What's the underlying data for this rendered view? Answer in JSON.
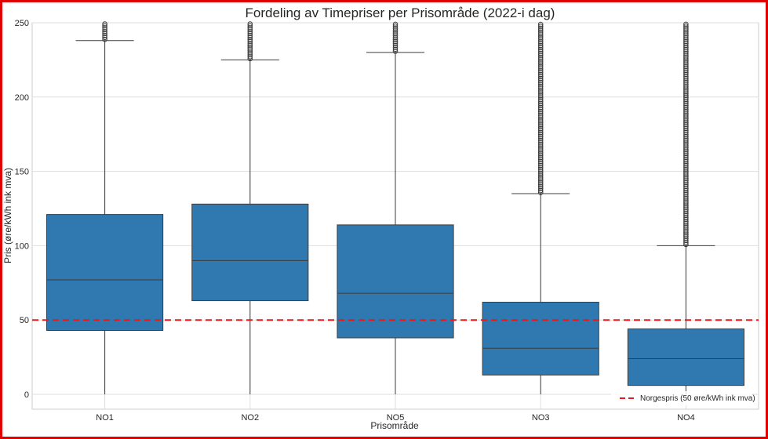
{
  "chart_data": {
    "type": "box",
    "title": "Fordeling av Timepriser per Prisområde (2022-i dag)",
    "xlabel": "Prisområde",
    "ylabel": "Pris (øre/kWh ink mva)",
    "ylim": [
      -10,
      250
    ],
    "yticks": [
      0,
      50,
      100,
      150,
      200,
      250
    ],
    "grid": true,
    "categories": [
      "NO1",
      "NO2",
      "NO5",
      "NO3",
      "NO4"
    ],
    "boxes": [
      {
        "category": "NO1",
        "whisker_low": 0,
        "q1": 43,
        "median": 77,
        "q3": 121,
        "whisker_high": 238,
        "outliers_from": 238,
        "outliers_to": 250
      },
      {
        "category": "NO2",
        "whisker_low": 0,
        "q1": 63,
        "median": 90,
        "q3": 128,
        "whisker_high": 225,
        "outliers_from": 225,
        "outliers_to": 250
      },
      {
        "category": "NO5",
        "whisker_low": 0,
        "q1": 38,
        "median": 68,
        "q3": 114,
        "whisker_high": 230,
        "outliers_from": 230,
        "outliers_to": 250
      },
      {
        "category": "NO3",
        "whisker_low": 0,
        "q1": 13,
        "median": 31,
        "q3": 62,
        "whisker_high": 135,
        "outliers_from": 135,
        "outliers_to": 250
      },
      {
        "category": "NO4",
        "whisker_low": 0,
        "q1": 6,
        "median": 24,
        "q3": 44,
        "whisker_high": 100,
        "outliers_from": 100,
        "outliers_to": 250
      }
    ],
    "reference_line": {
      "y": 50,
      "label": "Norgespris (50 øre/kWh ink mva)",
      "color": "#e8191c",
      "style": "dashed"
    },
    "box_color": "#2f78b0",
    "legend_position": "bottom-right"
  }
}
